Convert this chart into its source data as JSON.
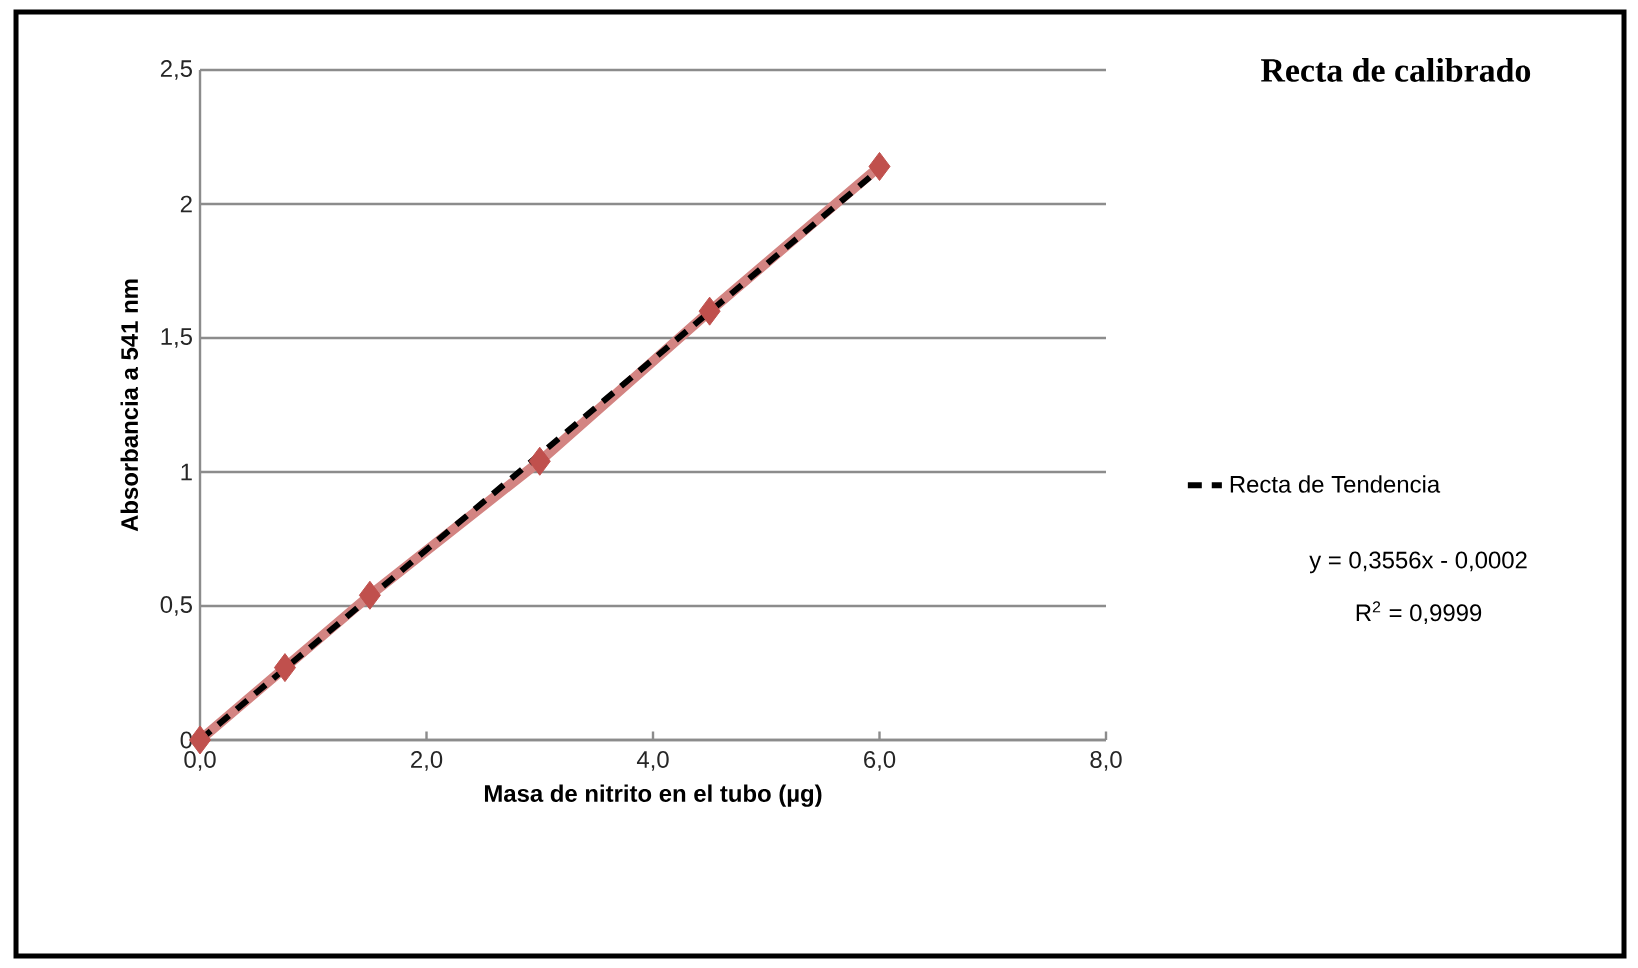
{
  "chart_data": {
    "type": "line",
    "title": "Recta de calibrado",
    "xlabel": "Masa de nitrito en el tubo (µg)",
    "ylabel": "Absorbancia a 541 nm",
    "series": [
      {
        "color": "#c0504d",
        "marker": "diamond",
        "x": [
          0,
          0.75,
          1.5,
          3,
          4.5,
          6
        ],
        "values": [
          0,
          0.27,
          0.54,
          1.04,
          1.6,
          2.14
        ]
      },
      {
        "name": "Recta de Tendencia",
        "color": "#000000",
        "marker": "none",
        "line_style": "dashed",
        "x": [
          0,
          6
        ],
        "values": [
          0,
          2.13
        ]
      }
    ],
    "annotations": [
      "y = 0,3556x - 0,0002",
      "R$^{2}$ = 0,9999"
    ],
    "xlim": [
      0,
      8
    ],
    "ylim": [
      0,
      2.5
    ],
    "xticks": [
      {
        "value": 0,
        "label": "0,0"
      },
      {
        "value": 2,
        "label": "2,0"
      },
      {
        "value": 4,
        "label": "4,0"
      },
      {
        "value": 6,
        "label": "6,0"
      },
      {
        "value": 8,
        "label": "8,0"
      }
    ],
    "yticks": [
      0,
      {
        "value": 0.5,
        "label": "0,5"
      },
      1,
      {
        "value": 1.5,
        "label": "1,5"
      },
      2,
      {
        "value": 2.5,
        "label": "2,5"
      }
    ],
    "grid": "y",
    "legend": "right"
  }
}
